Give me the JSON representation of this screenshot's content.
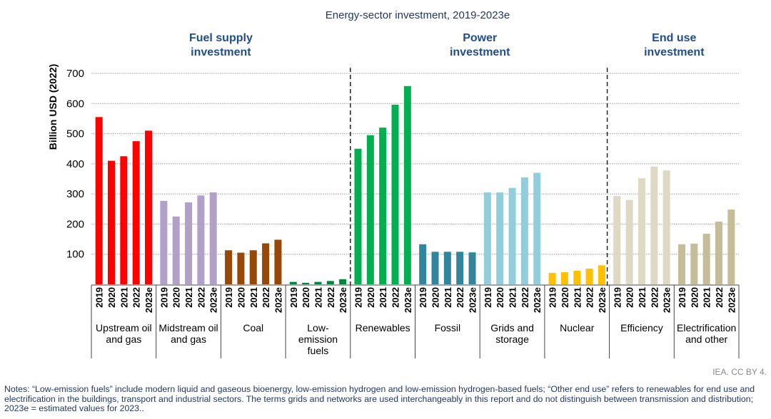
{
  "chart_data": {
    "type": "bar",
    "title": "Energy-sector investment, 2019-2023e",
    "ylabel": "Billion USD (2022)",
    "xlabel": "",
    "ylim": [
      0,
      700
    ],
    "yticks": [
      100,
      200,
      300,
      400,
      500,
      600,
      700
    ],
    "grid": true,
    "years": [
      "2019",
      "2020",
      "2021",
      "2022",
      "2023e"
    ],
    "sections": [
      {
        "name": "Fuel supply\ninvestment",
        "lines": [
          "Fuel supply",
          "investment"
        ],
        "categories": [
          0,
          1,
          2,
          3
        ]
      },
      {
        "name": "Power\ninvestment",
        "lines": [
          "Power",
          "investment"
        ],
        "categories": [
          4,
          5,
          6,
          7
        ]
      },
      {
        "name": "End use\ninvestment",
        "lines": [
          "End use",
          "investment"
        ],
        "categories": [
          8,
          9
        ]
      }
    ],
    "categories": [
      {
        "label": "Upstream oil and gas",
        "lines": [
          "Upstream oil",
          "and gas"
        ],
        "color": "#ff0000",
        "values": [
          555,
          410,
          425,
          475,
          510
        ]
      },
      {
        "label": "Midstream oil and gas",
        "lines": [
          "Midstream oil",
          "and gas"
        ],
        "color": "#b1a0c7",
        "values": [
          277,
          225,
          272,
          295,
          305
        ]
      },
      {
        "label": "Coal",
        "lines": [
          "Coal"
        ],
        "color": "#974706",
        "values": [
          113,
          105,
          113,
          136,
          148
        ]
      },
      {
        "label": "Low-emission fuels",
        "lines": [
          "Low-",
          "emission",
          "fuels"
        ],
        "color": "#00853f",
        "values": [
          8,
          5,
          8,
          11,
          17
        ]
      },
      {
        "label": "Renewables",
        "lines": [
          "Renewables"
        ],
        "color": "#00b050",
        "values": [
          450,
          495,
          520,
          596,
          658
        ]
      },
      {
        "label": "Fossil",
        "lines": [
          "Fossil"
        ],
        "color": "#31859c",
        "values": [
          133,
          108,
          108,
          108,
          106
        ]
      },
      {
        "label": "Grids and storage",
        "lines": [
          "Grids and",
          "storage"
        ],
        "color": "#92cddc",
        "values": [
          305,
          305,
          320,
          355,
          370
        ]
      },
      {
        "label": "Nuclear",
        "lines": [
          "Nuclear"
        ],
        "color": "#ffc000",
        "values": [
          38,
          40,
          45,
          52,
          63
        ]
      },
      {
        "label": "Efficiency",
        "lines": [
          "Efficiency"
        ],
        "color": "#ddd9c4",
        "values": [
          293,
          280,
          352,
          391,
          378
        ]
      },
      {
        "label": "Electrification and other",
        "lines": [
          "Electrification",
          "and other"
        ],
        "color": "#c4bd97",
        "values": [
          133,
          135,
          168,
          208,
          248
        ]
      }
    ]
  },
  "credit": "IEA. CC BY 4.",
  "notes": "Notes: “Low-emission fuels” include modern liquid and gaseous bioenergy, low-emission hydrogen and low-emission hydrogen-based fuels; “Other end use” refers to renewables for end use and electrification in the buildings, transport and industrial sectors. The terms grids and networks are used interchangeably in this report and do not distinguish between transmission and distribution; 2023e = estimated values for 2023.."
}
